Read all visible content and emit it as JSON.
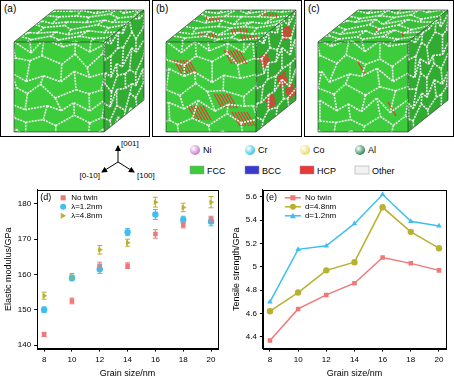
{
  "figure": {
    "panels": [
      "(a)",
      "(b)",
      "(c)"
    ],
    "axes_triad": {
      "up": "[001]",
      "left": "[0-10]",
      "right": "[100]"
    },
    "atom_legend": [
      {
        "label": "Ni",
        "color": "#c77dd0"
      },
      {
        "label": "Cr",
        "color": "#3cc8e8"
      },
      {
        "label": "Co",
        "color": "#e6dc6a"
      },
      {
        "label": "Al",
        "color": "#2e8b57"
      }
    ],
    "structure_legend": [
      {
        "label": "FCC",
        "color": "#3ccc3c"
      },
      {
        "label": "BCC",
        "color": "#3a3ad0"
      },
      {
        "label": "HCP",
        "color": "#e83838"
      },
      {
        "label": "Other",
        "color": "#f2f2f2"
      }
    ]
  },
  "chart_data": [
    {
      "type": "scatter",
      "label": "(d)",
      "x_label": "Grain size/nm",
      "y_label": "Elastic modulus/GPa",
      "x": [
        8,
        10,
        12,
        14,
        16,
        18,
        20
      ],
      "xlim": [
        7.5,
        20.5
      ],
      "xticks": [
        8,
        10,
        12,
        14,
        16,
        18,
        20
      ],
      "ylim": [
        139,
        184
      ],
      "yticks": [
        140,
        150,
        160,
        170,
        180
      ],
      "grid": false,
      "legend": "upper left",
      "series": [
        {
          "name": "No twin",
          "color": "#f07878",
          "marker": "square",
          "values": [
            143,
            152.5,
            162.5,
            162.5,
            171.5,
            174,
            175.5
          ],
          "errors": [
            0.6,
            0.8,
            1.0,
            0.8,
            1.2,
            0.8,
            1.0
          ]
        },
        {
          "name": "λ=1.2nm",
          "color": "#3fbff0",
          "marker": "circle",
          "values": [
            150,
            159,
            161.5,
            172,
            177,
            175.5,
            175
          ],
          "errors": [
            0.8,
            0.8,
            1.2,
            1.0,
            1.4,
            1.0,
            1.2
          ]
        },
        {
          "name": "λ=4.8nm",
          "color": "#b8b030",
          "marker": "triangle-right",
          "values": [
            154,
            159.5,
            167,
            169,
            180.5,
            179,
            180.5
          ],
          "errors": [
            1.0,
            0.8,
            1.2,
            1.0,
            1.4,
            1.2,
            1.6
          ]
        }
      ]
    },
    {
      "type": "line",
      "label": "(e)",
      "x_label": "Grain size/nm",
      "y_label": "Tensile strength/GPa",
      "x": [
        8,
        10,
        12,
        14,
        16,
        18,
        20
      ],
      "xlim": [
        7.5,
        20.5
      ],
      "xticks": [
        8,
        10,
        12,
        14,
        16,
        18,
        20
      ],
      "ylim": [
        4.3,
        5.66
      ],
      "yticks": [
        4.4,
        4.6,
        4.8,
        5.0,
        5.2,
        5.4,
        5.6
      ],
      "grid": false,
      "legend": "upper left",
      "series": [
        {
          "name": "No twin",
          "color": "#f07878",
          "marker": "square",
          "values": [
            4.37,
            4.64,
            4.76,
            4.86,
            5.08,
            5.03,
            4.97
          ]
        },
        {
          "name": "d=4.8nm",
          "color": "#b8b030",
          "marker": "circle",
          "values": [
            4.62,
            4.78,
            4.97,
            5.04,
            5.51,
            5.3,
            5.16
          ]
        },
        {
          "name": "d=1.2nm",
          "color": "#3fbff0",
          "marker": "triangle",
          "values": [
            4.7,
            5.15,
            5.18,
            5.37,
            5.62,
            5.39,
            5.35
          ]
        }
      ]
    }
  ]
}
